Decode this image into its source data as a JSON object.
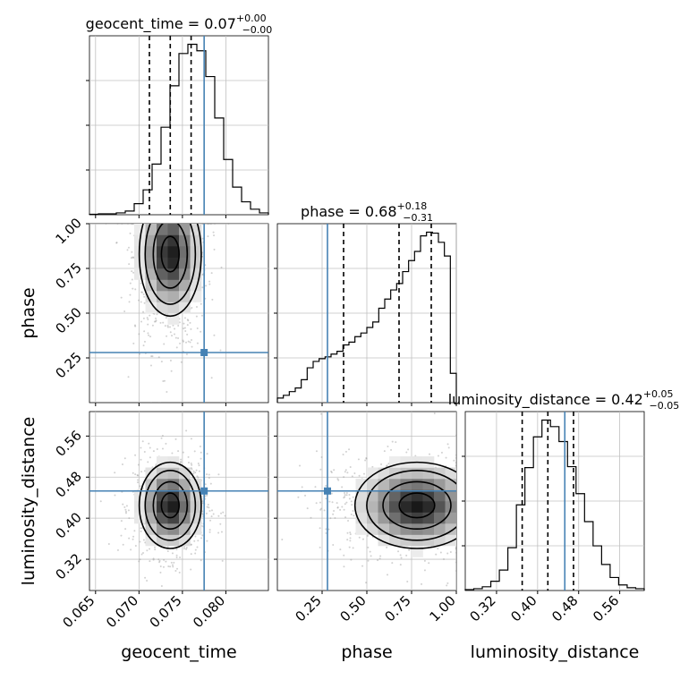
{
  "chart_data": {
    "type": "corner",
    "parameters": [
      "geocent_time",
      "phase",
      "luminosity_distance"
    ],
    "ranges": {
      "geocent_time": [
        0.0643,
        0.0849
      ],
      "phase": [
        0.0,
        1.0
      ],
      "luminosity_distance": [
        0.2591,
        0.6077
      ]
    },
    "truths": {
      "geocent_time": 0.0775,
      "phase": 0.28,
      "luminosity_distance": 0.453
    },
    "colors": {
      "truth": "#4682b4",
      "contour": "#000000",
      "grid": "#c0c0c0",
      "points": "#9a9a9a"
    },
    "titles": [
      {
        "param": "geocent_time",
        "prefix": "geocent_time = ",
        "median": "0.07",
        "plus": "+0.00",
        "minus": "−0.00"
      },
      {
        "param": "phase",
        "prefix": "phase = ",
        "median": "0.68",
        "plus": "+0.18",
        "minus": "−0.31"
      },
      {
        "param": "luminosity_distance",
        "prefix": "luminosity_distance = ",
        "median": "0.42",
        "plus": "+0.05",
        "minus": "−0.05"
      }
    ],
    "quantiles": {
      "geocent_time": [
        0.0712,
        0.0736,
        0.076
      ],
      "phase": [
        0.37,
        0.68,
        0.86
      ],
      "luminosity_distance": [
        0.37,
        0.42,
        0.47
      ]
    },
    "histograms": {
      "geocent_time": {
        "edges_start": 0.0643,
        "edges_end": 0.0849,
        "counts": [
          0.5,
          1,
          1,
          2,
          4,
          12,
          27,
          55,
          95,
          140,
          175,
          185,
          178,
          150,
          105,
          60,
          30,
          14,
          6,
          2
        ]
      },
      "phase": {
        "edges_start": 0.0,
        "edges_end": 1.0,
        "counts": [
          5,
          8,
          12,
          16,
          25,
          38,
          45,
          48,
          50,
          53,
          56,
          63,
          66,
          72,
          76,
          82,
          88,
          103,
          113,
          123,
          130,
          143,
          155,
          165,
          182,
          186,
          185,
          175,
          160,
          32
        ]
      },
      "luminosity_distance": {
        "edges_start": 0.2591,
        "edges_end": 0.6077,
        "counts": [
          1,
          2,
          4,
          10,
          22,
          46,
          92,
          132,
          165,
          183,
          176,
          160,
          133,
          104,
          74,
          48,
          28,
          14,
          6,
          3,
          2
        ]
      }
    },
    "ticks": {
      "geocent_time_x": [
        "0.065",
        "0.070",
        "0.075",
        "0.080"
      ],
      "phase_x": [
        "0.25",
        "0.50",
        "0.75",
        "1.00"
      ],
      "luminosity_distance_x": [
        "0.32",
        "0.40",
        "0.48",
        "0.56"
      ],
      "phase_y": [
        "0.25",
        "0.50",
        "0.75",
        "1.00"
      ],
      "luminosity_distance_y": [
        "0.32",
        "0.40",
        "0.48",
        "0.56"
      ]
    },
    "axis_labels": {
      "x": [
        "geocent_time",
        "phase",
        "luminosity_distance"
      ],
      "y": [
        "phase",
        "luminosity_distance"
      ]
    },
    "grid": true
  }
}
